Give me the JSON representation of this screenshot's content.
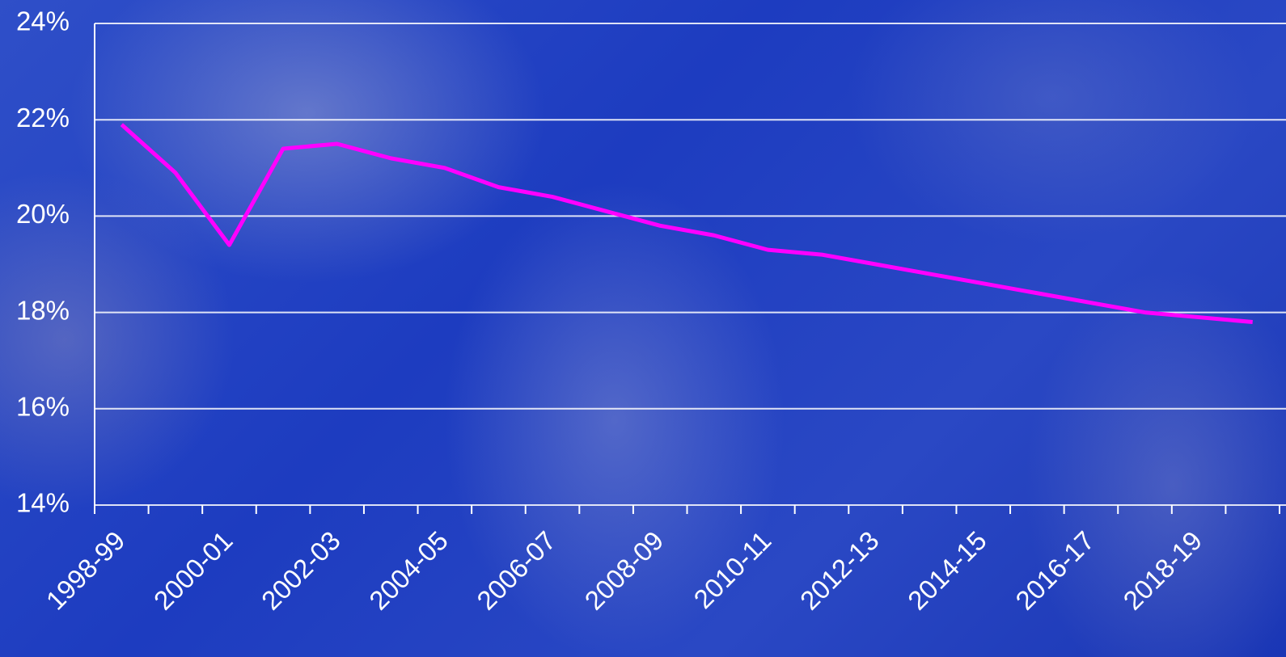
{
  "chart_data": {
    "type": "line",
    "categories": [
      "1998-99",
      null,
      "2000-01",
      null,
      "2002-03",
      null,
      "2004-05",
      null,
      "2006-07",
      null,
      "2008-09",
      null,
      "2010-11",
      null,
      "2012-13",
      null,
      "2014-15",
      null,
      "2016-17",
      null,
      "2018-19",
      null
    ],
    "values": [
      21.9,
      20.9,
      19.4,
      21.4,
      21.5,
      21.2,
      21.0,
      20.6,
      20.4,
      20.1,
      19.8,
      19.6,
      19.3,
      19.2,
      19.0,
      18.8,
      18.6,
      18.4,
      18.2,
      18.0,
      17.9,
      17.8
    ],
    "color": "#ff00ff",
    "ylim": [
      14,
      24
    ],
    "yticks": [
      {
        "value": 14,
        "label": "14%"
      },
      {
        "value": 16,
        "label": "16%"
      },
      {
        "value": 18,
        "label": "18%"
      },
      {
        "value": 20,
        "label": "20%"
      },
      {
        "value": 22,
        "label": "22%"
      },
      {
        "value": 24,
        "label": "24%"
      }
    ],
    "grid": true
  }
}
